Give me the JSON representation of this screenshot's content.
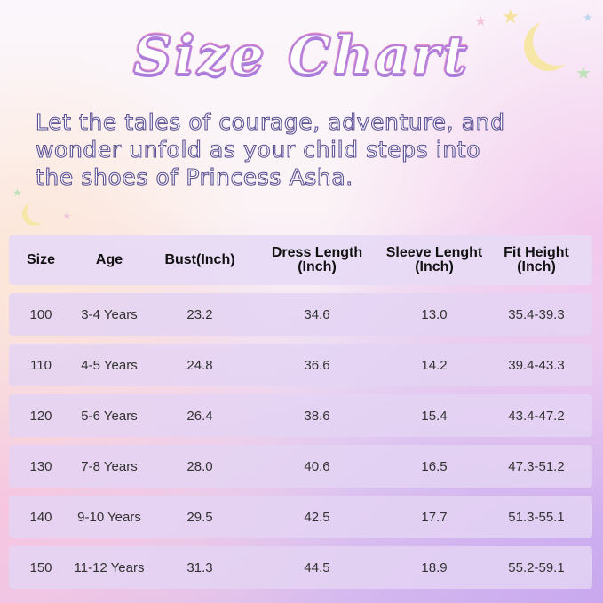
{
  "title": "Size Chart",
  "subtitle_lines": [
    "Let the tales of courage, adventure, and",
    "wonder unfold as your child steps into",
    "the shoes of Princess Asha."
  ],
  "table": {
    "headers": [
      [
        "Size",
        ""
      ],
      [
        "Age",
        ""
      ],
      [
        "Bust(Inch)",
        ""
      ],
      [
        "Dress Length",
        "(Inch)"
      ],
      [
        "Sleeve Lenght",
        "(Inch)"
      ],
      [
        "Fit Height",
        "(Inch)"
      ]
    ],
    "rows": [
      [
        "100",
        "3-4 Years",
        "23.2",
        "34.6",
        "13.0",
        "35.4-39.3"
      ],
      [
        "110",
        "4-5 Years",
        "24.8",
        "36.6",
        "14.2",
        "39.4-43.3"
      ],
      [
        "120",
        "5-6 Years",
        "26.4",
        "38.6",
        "15.4",
        "43.4-47.2"
      ],
      [
        "130",
        "7-8 Years",
        "28.0",
        "40.6",
        "16.5",
        "47.3-51.2"
      ],
      [
        "140",
        "9-10 Years",
        "29.5",
        "42.5",
        "17.7",
        "51.3-55.1"
      ],
      [
        "150",
        "11-12 Years",
        "31.3",
        "44.5",
        "18.9",
        "55.2-59.1"
      ]
    ]
  },
  "colors": {
    "title_outline": "#b57fd8",
    "subtitle_outline": "#5d5196",
    "row_bg": "#e4d4f3"
  }
}
